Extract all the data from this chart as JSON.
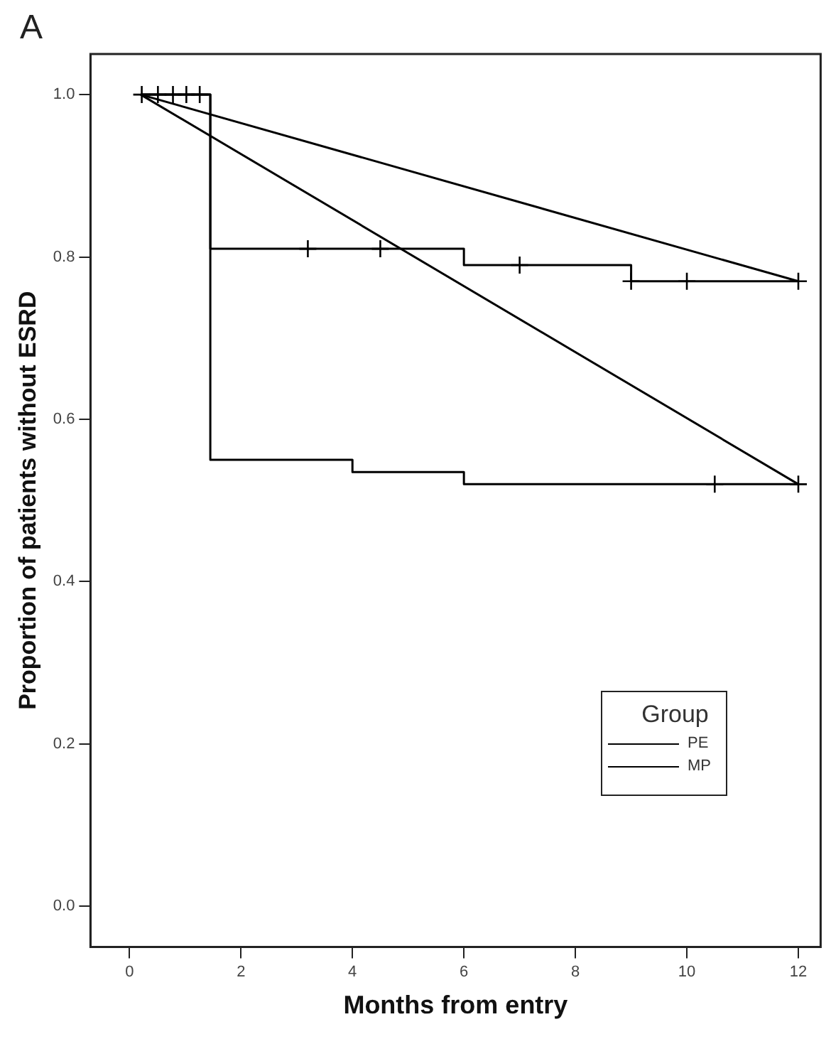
{
  "chart_data": {
    "type": "step",
    "xlabel": "Months from entry",
    "ylabel": "Proportion of patients without ESRD",
    "legend_title": "Group",
    "legend": "bottom right",
    "annotations": [
      "A"
    ],
    "xlim": [
      -0.7,
      12.4
    ],
    "xticks": [
      0,
      2,
      4,
      6,
      8,
      10,
      12
    ],
    "ylim": [
      -0.05,
      1.05
    ],
    "yticks": [
      {
        "value": 0,
        "label": "0.0"
      },
      {
        "value": 0.2,
        "label": "0.2"
      },
      {
        "value": 0.4,
        "label": "0.4"
      },
      {
        "value": 0.6,
        "label": "0.6"
      },
      {
        "value": 0.8,
        "label": "0.8"
      },
      {
        "value": 1,
        "label": "1.0"
      }
    ],
    "series": [
      {
        "name": "PE",
        "color": "#000000",
        "x": [
          0.2,
          1.45,
          6,
          9,
          12
        ],
        "values": [
          1,
          0.81,
          0.79,
          0.77,
          0.77
        ]
      },
      {
        "name": "MP",
        "color": "#000000",
        "x": [
          0.2,
          1.45,
          4,
          6,
          12
        ],
        "values": [
          1,
          0.55,
          0.535,
          0.52,
          0.52
        ]
      },
      {
        "color": "#000000",
        "type": "scatter",
        "marker": "cross",
        "x": [
          0.22,
          0.51,
          0.78,
          1.02,
          1.26,
          3.2,
          4.5,
          7,
          9,
          10,
          12
        ],
        "values": [
          1,
          1,
          1,
          1,
          1,
          0.81,
          0.81,
          0.79,
          0.77,
          0.77,
          0.77
        ]
      },
      {
        "color": "#000000",
        "type": "scatter",
        "marker": "cross",
        "x": [
          10.5,
          12
        ],
        "values": [
          0.52,
          0.52
        ]
      },
      {
        "color": "#000000",
        "type": "line",
        "x": [
          0.2,
          12
        ],
        "values": [
          1,
          0.77
        ]
      },
      {
        "color": "#000000",
        "type": "line",
        "x": [
          0.2,
          12
        ],
        "values": [
          1,
          0.52
        ]
      }
    ]
  }
}
